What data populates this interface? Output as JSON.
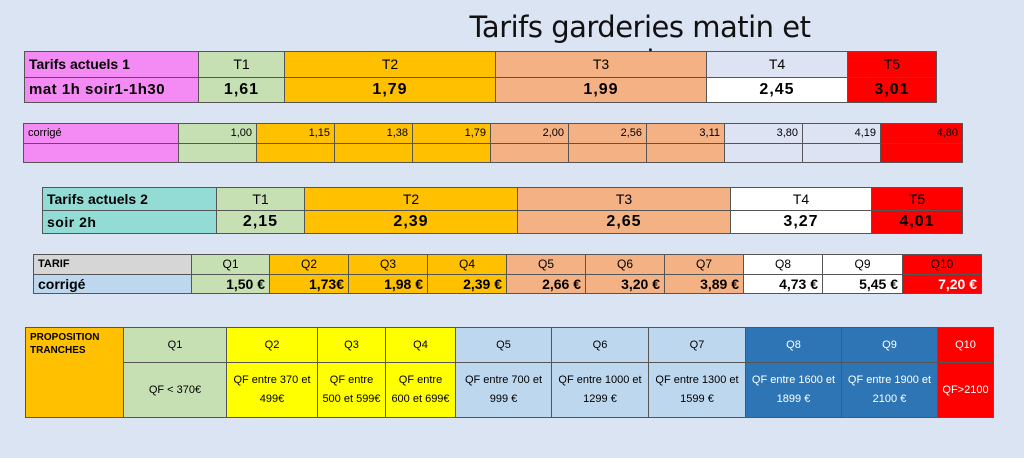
{
  "title": "Tarifs garderies matin et soir",
  "table1": {
    "label1": "Tarifs actuels 1",
    "label2": "mat 1h soir1-1h30",
    "headers": [
      "T1",
      "T2",
      "T3",
      "T4",
      "T5"
    ],
    "values": [
      "1,61",
      "1,79",
      "1,99",
      "2,45",
      "3,01"
    ]
  },
  "table2": {
    "label": "corrigé",
    "values": [
      "1,00",
      "1,15",
      "1,38",
      "1,79",
      "2,00",
      "2,56",
      "3,11",
      "3,80",
      "4,19",
      "4,80"
    ]
  },
  "table3": {
    "label1": "Tarifs actuels 2",
    "label2": "soir 2h",
    "headers": [
      "T1",
      "T2",
      "T3",
      "T4",
      "T5"
    ],
    "values": [
      "2,15",
      "2,39",
      "2,65",
      "3,27",
      "4,01"
    ]
  },
  "table4": {
    "label1": "TARIF",
    "label2": "corrigé",
    "headers": [
      "Q1",
      "Q2",
      "Q3",
      "Q4",
      "Q5",
      "Q6",
      "Q7",
      "Q8",
      "Q9",
      "Q10"
    ],
    "values": [
      "1,50 €",
      "1,73€",
      "1,98 €",
      "2,39 €",
      "2,66 €",
      "3,20 €",
      "3,89 €",
      "4,73 €",
      "5,45 €",
      "7,20 €"
    ]
  },
  "table5": {
    "label": "PROPOSITION TRANCHES",
    "headers": [
      "Q1",
      "Q2",
      "Q3",
      "Q4",
      "Q5",
      "Q6",
      "Q7",
      "Q8",
      "Q9",
      "Q10"
    ],
    "ranges": [
      "QF < 370€",
      "QF entre 370 et 499€",
      "QF entre 500 et 599€",
      "QF entre 600 et 699€",
      "QF entre 700 et 999 €",
      "QF entre 1000 et 1299 €",
      "QF entre 1300 et 1599 €",
      "QF entre 1600 et 1899 €",
      "QF entre 1900 et 2100 €",
      "QF>2100"
    ]
  },
  "colors": {
    "background": "#dbe4f2",
    "pink": "#f48af3",
    "light_green": "#c6e0b4",
    "orange": "#ffc000",
    "salmon": "#f4b183",
    "lavender": "#dde3f2",
    "red": "#ff0000",
    "teal": "#92dcd5",
    "light_blue": "#bdd7ee",
    "yellow": "#ffff00",
    "dark_blue": "#2e75b6"
  }
}
